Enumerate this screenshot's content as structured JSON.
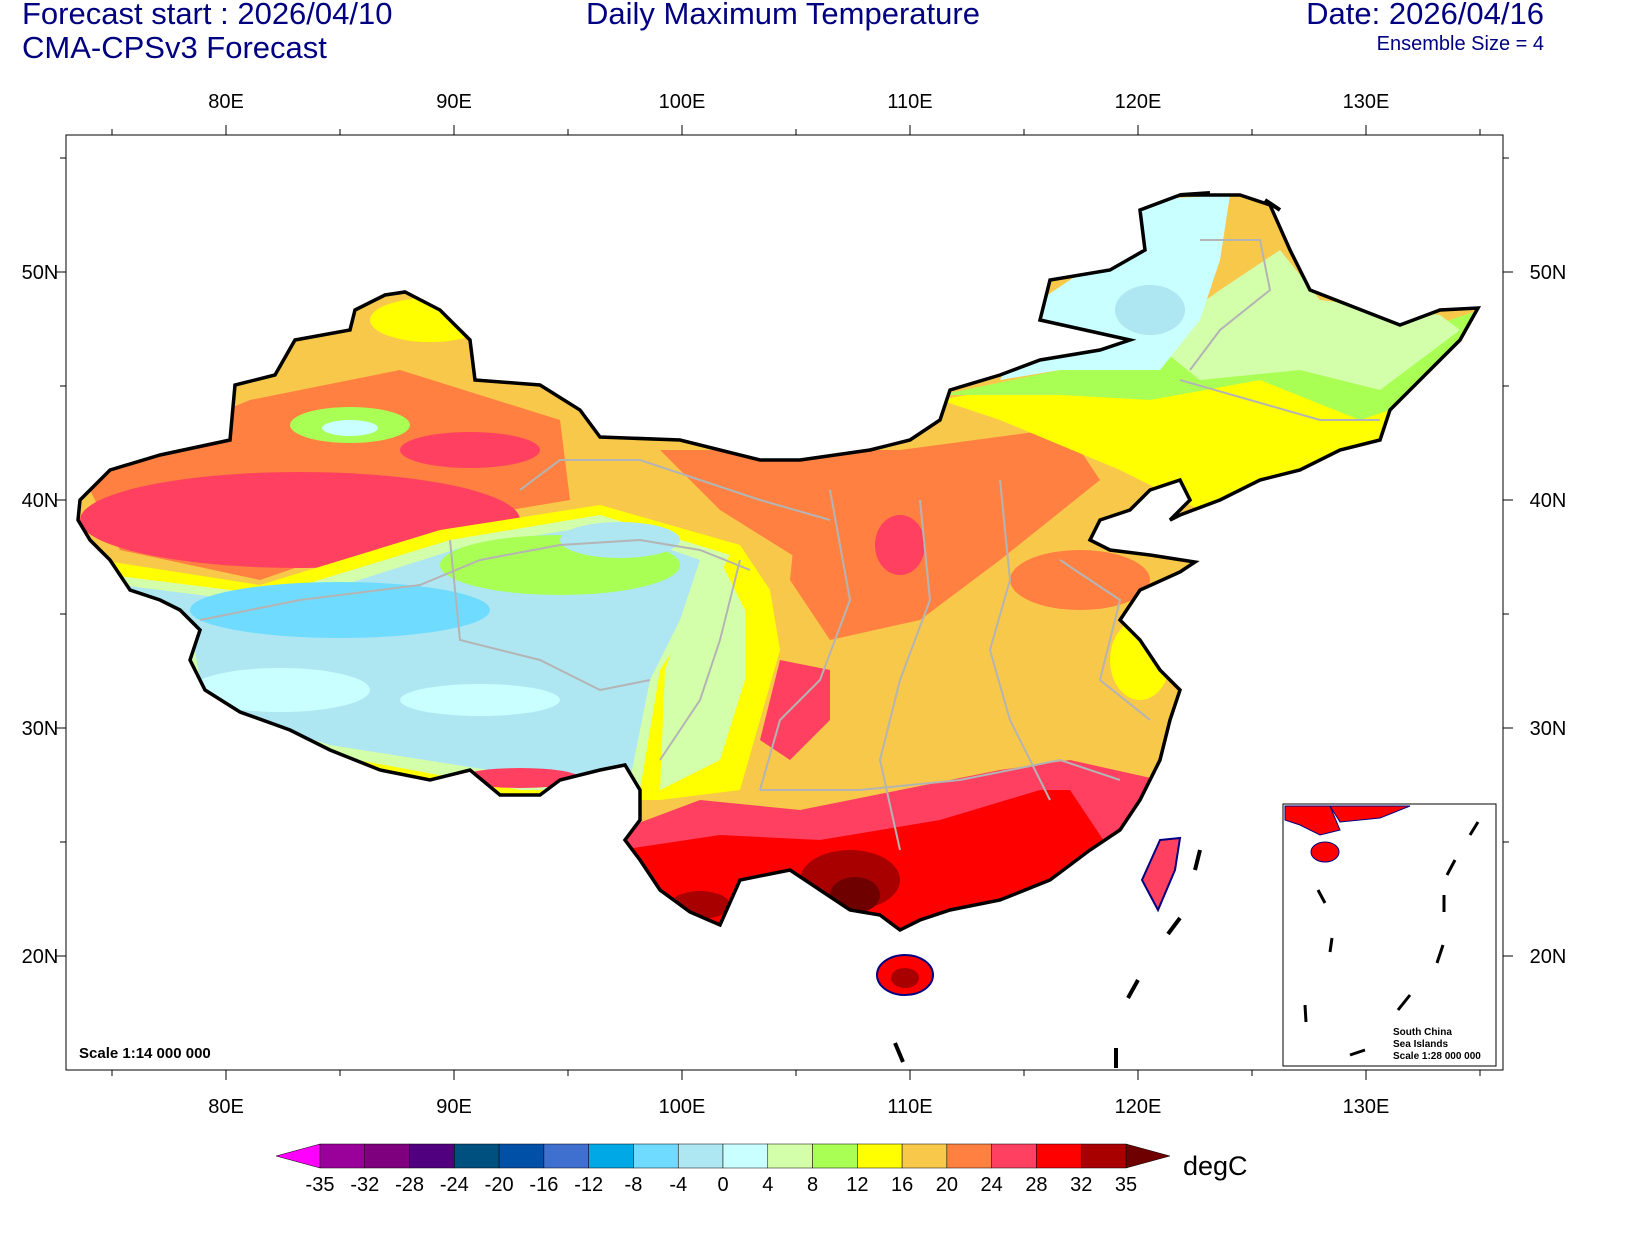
{
  "header": {
    "forecast_start": "Forecast start : 2026/04/10",
    "model": "CMA-CPSv3 Forecast",
    "title": "Daily Maximum Temperature",
    "date": "Date: 2026/04/16",
    "ensemble": "Ensemble Size = 4"
  },
  "axes": {
    "lon_labels": [
      "80E",
      "90E",
      "100E",
      "110E",
      "120E",
      "130E"
    ],
    "lon_values": [
      80,
      90,
      100,
      110,
      120,
      130
    ],
    "lat_labels": [
      "50N",
      "40N",
      "30N",
      "20N"
    ],
    "lat_values": [
      50,
      40,
      30,
      20
    ],
    "lon_range": [
      73,
      136
    ],
    "lat_range": [
      15,
      56
    ]
  },
  "map": {
    "scale": "Scale 1:14 000 000",
    "inset_line1": "South China",
    "inset_line2": "Sea Islands",
    "inset_scale": "Scale 1:28 000 000"
  },
  "colorbar": {
    "units": "degC",
    "labels": [
      "-35",
      "-32",
      "-28",
      "-24",
      "-20",
      "-16",
      "-12",
      "-8",
      "-4",
      "0",
      "4",
      "8",
      "12",
      "16",
      "20",
      "24",
      "28",
      "32",
      "35"
    ],
    "colors": [
      "#9a009a",
      "#7f007f",
      "#50007f",
      "#00507f",
      "#0050a8",
      "#3f6fcf",
      "#00a9e6",
      "#6fdcff",
      "#aee6f2",
      "#caffff",
      "#d4ffaa",
      "#aaff55",
      "#ffff00",
      "#f8c84a",
      "#ff8040",
      "#ff4060",
      "#ff0000",
      "#a80000"
    ],
    "under_color": "#ff00ff",
    "over_color": "#6e0000"
  }
}
